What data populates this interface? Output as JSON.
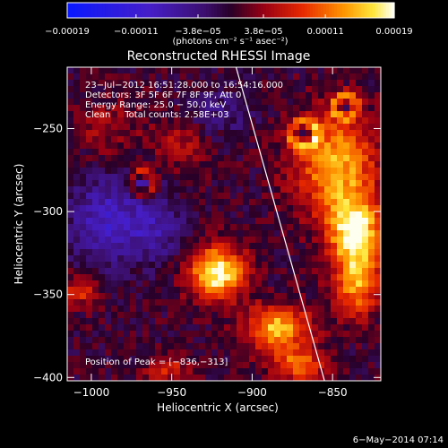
{
  "chart_data": {
    "type": "heatmap",
    "title": "Reconstructed RHESSI Image",
    "xlabel": "Heliocentric X (arcsec)",
    "ylabel": "Heliocentric Y (arcsec)",
    "xlim": [
      -1015,
      -820
    ],
    "ylim": [
      -402,
      -213
    ],
    "x_ticks": [
      -1000,
      -950,
      -900,
      -850
    ],
    "y_ticks": [
      -400,
      -350,
      -300,
      -250
    ],
    "x_tick_labels": [
      "−1000",
      "−950",
      "−900",
      "−850"
    ],
    "y_tick_labels": [
      "−400",
      "−350",
      "−300",
      "−250"
    ],
    "grid": false,
    "info_lines": [
      "23−Jul−2012 16:51:28.000 to 16:54:16.000",
      "Detectors: 3F 5F 6F 7F 8F 9F, Att 0",
      "Energy Range: 25.0 − 50.0 keV",
      "Clean     Total counts: 2.58E+03"
    ],
    "peak_label": "Position of Peak = [−836,−313]",
    "peak_position": [
      -836,
      -313
    ],
    "colorbar": {
      "min": -0.00019,
      "max": 0.00019,
      "ticks": [
        -0.00019,
        -0.00011,
        -3.8e-05,
        3.8e-05,
        0.00011,
        0.00019
      ],
      "tick_labels": [
        "−0.00019",
        "−0.00011",
        "−3.8e−05",
        "3.8e−05",
        "0.00011",
        "0.00019"
      ],
      "unit_label": "(photons cm⁻² s⁻¹ asec⁻²)"
    },
    "limb_line": {
      "points": [
        [
          -910,
          -213
        ],
        [
          -855,
          -402
        ]
      ]
    },
    "sources": [
      {
        "x": -922,
        "y": -337,
        "value": 0.00019,
        "sx": 12,
        "sy": 11
      },
      {
        "x": -836,
        "y": -313,
        "value": 0.00019,
        "sx": 11,
        "sy": 15
      },
      {
        "x": -848,
        "y": -272,
        "value": 0.00014,
        "sx": 18,
        "sy": 22
      },
      {
        "x": -835,
        "y": -345,
        "value": 0.00012,
        "sx": 10,
        "sy": 13
      },
      {
        "x": -884,
        "y": -370,
        "value": 0.00015,
        "sx": 14,
        "sy": 9
      },
      {
        "x": -872,
        "y": -392,
        "value": 0.00011,
        "sx": 12,
        "sy": 7
      },
      {
        "x": -1006,
        "y": -347,
        "value": 8e-05,
        "sx": 8,
        "sy": 7
      },
      {
        "x": -953,
        "y": -395,
        "value": 7e-05,
        "sx": 10,
        "sy": 6
      },
      {
        "x": -945,
        "y": -260,
        "value": 5e-05,
        "sx": 12,
        "sy": 10
      },
      {
        "x": -990,
        "y": -250,
        "value": 4e-05,
        "sx": 15,
        "sy": 12
      },
      {
        "x": -990,
        "y": -305,
        "value": -9e-05,
        "sx": 16,
        "sy": 18
      },
      {
        "x": -960,
        "y": -310,
        "value": -6e-05,
        "sx": 12,
        "sy": 14
      },
      {
        "x": -920,
        "y": -240,
        "value": -4e-05,
        "sx": 14,
        "sy": 10
      }
    ],
    "rings": [
      {
        "x": -968,
        "y": -283,
        "r": 7,
        "value": 8e-05
      },
      {
        "x": -868,
        "y": -253,
        "r": 8,
        "value": 9e-05
      },
      {
        "x": -842,
        "y": -237,
        "r": 7,
        "value": 9e-05
      }
    ]
  },
  "timestamp": "6−May−2014 07:14"
}
